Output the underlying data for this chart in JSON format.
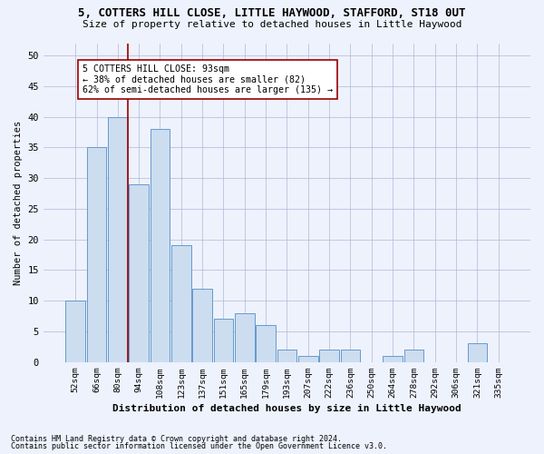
{
  "title1": "5, COTTERS HILL CLOSE, LITTLE HAYWOOD, STAFFORD, ST18 0UT",
  "title2": "Size of property relative to detached houses in Little Haywood",
  "xlabel": "Distribution of detached houses by size in Little Haywood",
  "ylabel": "Number of detached properties",
  "categories": [
    "52sqm",
    "66sqm",
    "80sqm",
    "94sqm",
    "108sqm",
    "123sqm",
    "137sqm",
    "151sqm",
    "165sqm",
    "179sqm",
    "193sqm",
    "207sqm",
    "222sqm",
    "236sqm",
    "250sqm",
    "264sqm",
    "278sqm",
    "292sqm",
    "306sqm",
    "321sqm",
    "335sqm"
  ],
  "values": [
    10,
    35,
    40,
    29,
    38,
    19,
    12,
    7,
    8,
    6,
    2,
    1,
    2,
    2,
    0,
    1,
    2,
    0,
    0,
    3,
    0
  ],
  "bar_color": "#ccddf0",
  "bar_edge_color": "#6699cc",
  "vline_x": 2.5,
  "annotation_text": "5 COTTERS HILL CLOSE: 93sqm\n← 38% of detached houses are smaller (82)\n62% of semi-detached houses are larger (135) →",
  "ylim": [
    0,
    52
  ],
  "yticks": [
    0,
    5,
    10,
    15,
    20,
    25,
    30,
    35,
    40,
    45,
    50
  ],
  "grid_color": "#b0b8d8",
  "bg_color": "#eef2fc",
  "footnote1": "Contains HM Land Registry data © Crown copyright and database right 2024.",
  "footnote2": "Contains public sector information licensed under the Open Government Licence v3.0."
}
